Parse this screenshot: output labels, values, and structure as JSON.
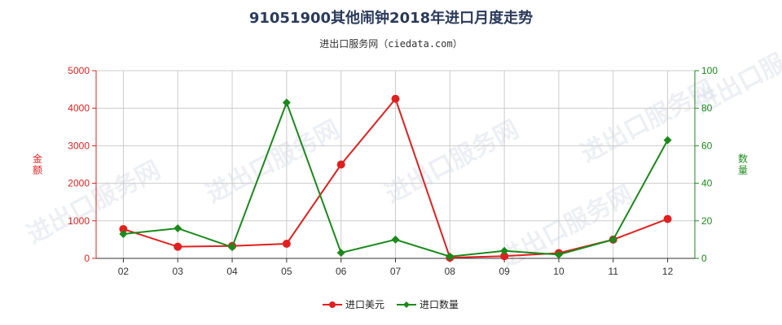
{
  "chart_data": {
    "type": "line",
    "title": "91051900其他闹钟2018年进口月度走势",
    "subtitle": "进出口服务网（ciedata.com）",
    "categories": [
      "02",
      "03",
      "04",
      "05",
      "06",
      "07",
      "08",
      "09",
      "10",
      "11",
      "12"
    ],
    "series": [
      {
        "name": "进口美元",
        "axis": "left",
        "color": "#e02020",
        "marker": "circle",
        "values": [
          780,
          310,
          330,
          390,
          2500,
          4250,
          20,
          60,
          140,
          500,
          1050
        ]
      },
      {
        "name": "进口数量",
        "axis": "right",
        "color": "#1a8a1a",
        "marker": "diamond",
        "values": [
          13,
          16,
          6,
          83,
          3,
          10,
          1,
          4,
          2,
          10,
          63
        ]
      }
    ],
    "y_left": {
      "label": "金额",
      "min": 0,
      "max": 5000,
      "ticks": [
        0,
        1000,
        2000,
        3000,
        4000,
        5000
      ],
      "color": "#e02020"
    },
    "y_right": {
      "label": "数量",
      "min": 0,
      "max": 100,
      "ticks": [
        0,
        20,
        40,
        60,
        80,
        100
      ],
      "color": "#1a8a1a"
    },
    "grid": true,
    "legend_position": "bottom",
    "watermark": "进出口服务网"
  }
}
